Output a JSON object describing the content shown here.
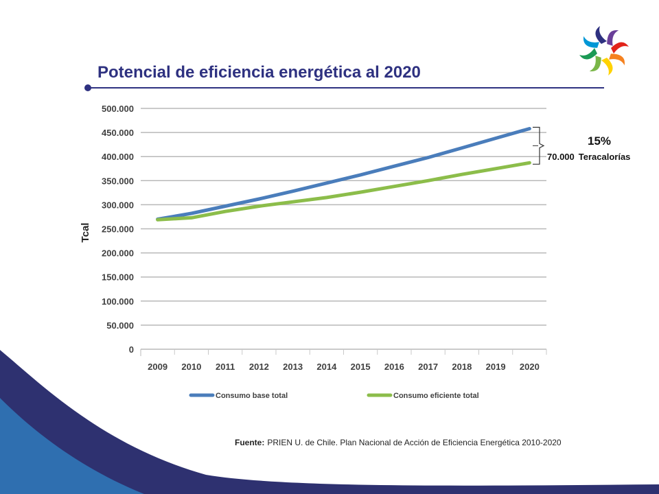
{
  "slide": {
    "title": "Potencial de eficiencia energética al 2020",
    "source_label": "Fuente:",
    "source_text": "PRIEN U. de Chile. Plan Nacional de Acción de Eficiencia Energética 2010-2020"
  },
  "annotation": {
    "percent": "15%",
    "amount": "70.000",
    "unit": "Teracalorías"
  },
  "colors": {
    "title": "#2e3180",
    "series_base": "#4a7dbb",
    "series_eff": "#8cbd4a",
    "bg_dark": "#2e3170",
    "bg_light": "#2f6fb0"
  },
  "logo": {
    "icon": "colorful-spiral-logo"
  },
  "chart_data": {
    "type": "line",
    "ylabel": "Tcal",
    "xlabel": "",
    "ylim": [
      0,
      500000
    ],
    "y_ticks": [
      "0",
      "50.000",
      "100.000",
      "150.000",
      "200.000",
      "250.000",
      "300.000",
      "350.000",
      "400.000",
      "450.000",
      "500.000"
    ],
    "y_tick_values": [
      0,
      50000,
      100000,
      150000,
      200000,
      250000,
      300000,
      350000,
      400000,
      450000,
      500000
    ],
    "categories": [
      "2009",
      "2010",
      "2011",
      "2012",
      "2013",
      "2014",
      "2015",
      "2016",
      "2017",
      "2018",
      "2019",
      "2020"
    ],
    "grid": "horizontal",
    "legend_position": "bottom",
    "series": [
      {
        "name": "Consumo base total",
        "values": [
          270000,
          282000,
          297000,
          312000,
          328000,
          345000,
          362000,
          380000,
          398000,
          418000,
          438000,
          458000
        ]
      },
      {
        "name": "Consumo eficiente total",
        "values": [
          269000,
          273000,
          286000,
          297000,
          306000,
          315000,
          326000,
          338000,
          350000,
          363000,
          375000,
          387000
        ]
      }
    ]
  }
}
